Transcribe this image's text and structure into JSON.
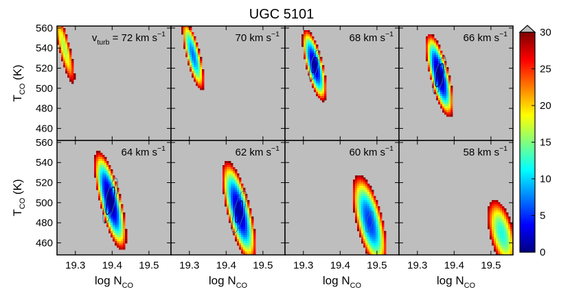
{
  "chart_data": {
    "type": "heatmap",
    "title": "UGC 5101",
    "xlabel": {
      "main": "log N",
      "sub": "CO"
    },
    "ylabel": {
      "main": "T",
      "sub": "CO",
      "suffix": " (K)"
    },
    "xlim": [
      19.25,
      19.56
    ],
    "ylim": [
      448,
      562
    ],
    "xticks": [
      19.3,
      19.4,
      19.5
    ],
    "xtick_labels": [
      "19.3",
      "19.4",
      "19.5"
    ],
    "yticks": [
      460,
      480,
      500,
      520,
      540,
      560
    ],
    "ytick_labels": [
      "460",
      "480",
      "500",
      "520",
      "540",
      "560"
    ],
    "layout": "2 rows x 4 columns, shared axes",
    "background": "#bebebe",
    "colorbar": {
      "min": 0,
      "max": 30,
      "ticks": [
        0,
        5,
        10,
        15,
        20,
        25,
        30
      ],
      "tick_labels": [
        "0",
        "5",
        "10",
        "15",
        "20",
        "25",
        "30"
      ],
      "colormap": "blue-cyan-green-yellow-red",
      "overflow_triangle": true
    },
    "contour_levels": [
      2.3,
      6.2
    ],
    "panels": [
      {
        "label_prefix": "v",
        "label_sub": "turb",
        "label": " = 72 km s",
        "label_exp": "−1",
        "best_fit": {
          "log_N": 19.27,
          "T": 540
        },
        "min_chi2": 16.0,
        "halfwidth_log_N": 0.015,
        "halfwidth_T": 36
      },
      {
        "label_prefix": "",
        "label_sub": "",
        "label": "70 km s",
        "label_exp": "−1",
        "best_fit": {
          "log_N": 19.31,
          "T": 533
        },
        "min_chi2": 7.0,
        "halfwidth_log_N": 0.019,
        "halfwidth_T": 36
      },
      {
        "label_prefix": "",
        "label_sub": "",
        "label": "68 km s",
        "label_exp": "−1",
        "best_fit": {
          "log_N": 19.33,
          "T": 523
        },
        "min_chi2": 1.0,
        "halfwidth_log_N": 0.023,
        "halfwidth_T": 37
      },
      {
        "label_prefix": "",
        "label_sub": "",
        "label": "66 km s",
        "label_exp": "−1",
        "best_fit": {
          "log_N": 19.36,
          "T": 513
        },
        "min_chi2": 0.0,
        "halfwidth_log_N": 0.026,
        "halfwidth_T": 43
      },
      {
        "label_prefix": "",
        "label_sub": "",
        "label": "64 km s",
        "label_exp": "−1",
        "best_fit": {
          "log_N": 19.395,
          "T": 502
        },
        "min_chi2": 0.0,
        "halfwidth_log_N": 0.029,
        "halfwidth_T": 51
      },
      {
        "label_prefix": "",
        "label_sub": "",
        "label": "62 km s",
        "label_exp": "−1",
        "best_fit": {
          "log_N": 19.435,
          "T": 491
        },
        "min_chi2": 1.0,
        "halfwidth_log_N": 0.032,
        "halfwidth_T": 52
      },
      {
        "label_prefix": "",
        "label_sub": "",
        "label": "60 km s",
        "label_exp": "−1",
        "best_fit": {
          "log_N": 19.48,
          "T": 481
        },
        "min_chi2": 5.0,
        "halfwidth_log_N": 0.036,
        "halfwidth_T": 48
      },
      {
        "label_prefix": "",
        "label_sub": "",
        "label": "58 km s",
        "label_exp": "−1",
        "best_fit": {
          "log_N": 19.53,
          "T": 469
        },
        "min_chi2": 12.0,
        "halfwidth_log_N": 0.033,
        "halfwidth_T": 35
      }
    ]
  }
}
